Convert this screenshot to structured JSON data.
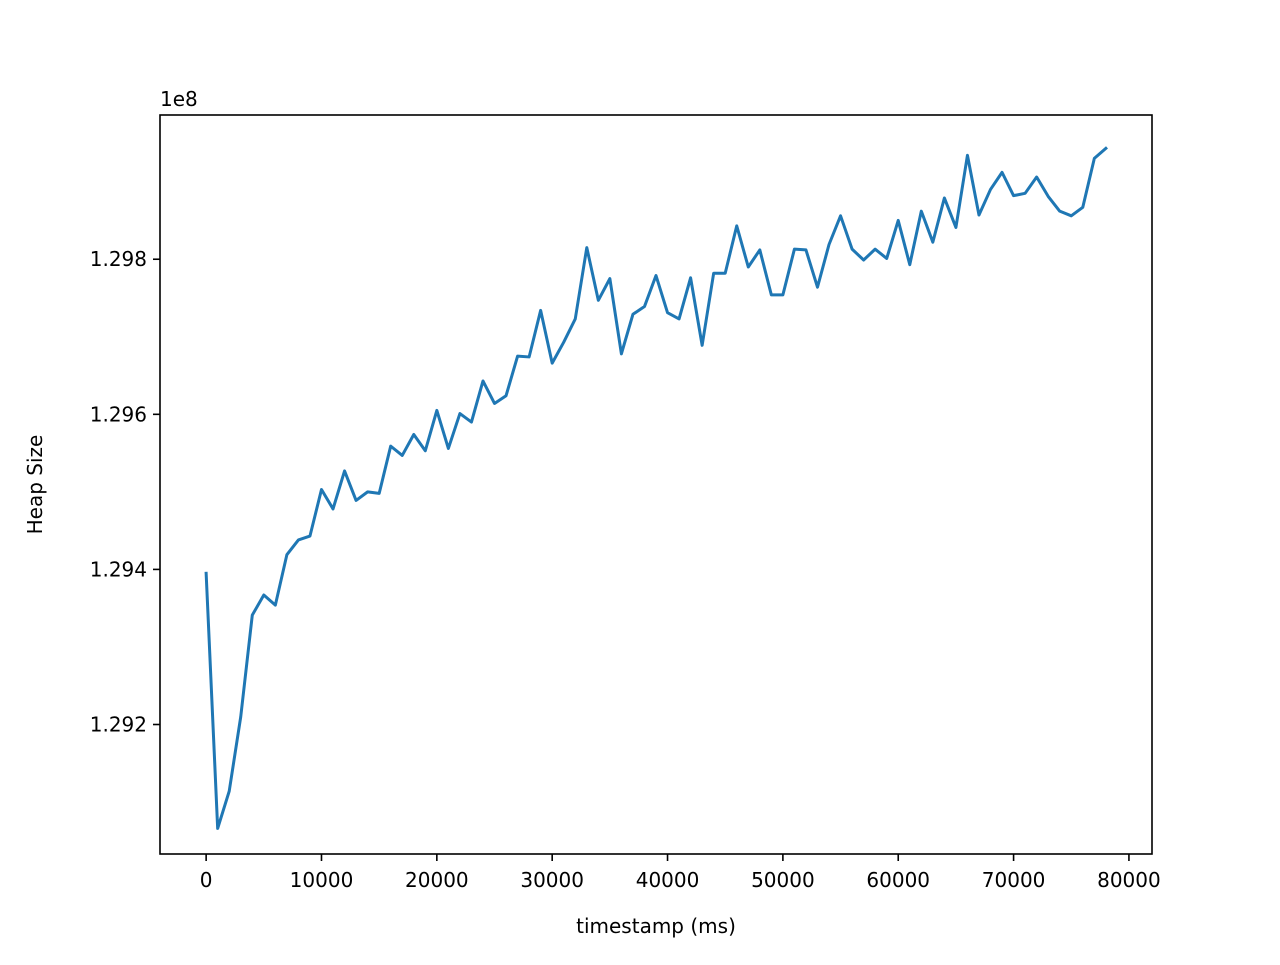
{
  "chart_data": {
    "type": "line",
    "xlabel": "timestamp (ms)",
    "ylabel": "Heap Size",
    "y_offset_text": "1e8",
    "xlim": [
      -4000,
      82000
    ],
    "ylim": [
      1.29033,
      1.29986
    ],
    "x_ticks": [
      0,
      10000,
      20000,
      30000,
      40000,
      50000,
      60000,
      70000,
      80000
    ],
    "x_tick_labels": [
      "0",
      "10000",
      "20000",
      "30000",
      "40000",
      "50000",
      "60000",
      "70000",
      "80000"
    ],
    "y_ticks": [
      1.292,
      1.294,
      1.296,
      1.298
    ],
    "y_tick_labels": [
      "1.292",
      "1.294",
      "1.296",
      "1.298"
    ],
    "grid": false,
    "line_color": "#1f77b4",
    "series": [
      {
        "x": [
          0,
          1000,
          2000,
          3000,
          4000,
          5000,
          6000,
          7000,
          8000,
          9000,
          10000,
          11000,
          12000,
          13000,
          14000,
          15000,
          16000,
          17000,
          18000,
          19000,
          20000,
          21000,
          22000,
          23000,
          24000,
          25000,
          26000,
          27000,
          28000,
          29000,
          30000,
          31000,
          32000,
          33000,
          34000,
          35000,
          36000,
          37000,
          38000,
          39000,
          40000,
          41000,
          42000,
          43000,
          44000,
          45000,
          46000,
          47000,
          48000,
          49000,
          50000,
          51000,
          52000,
          53000,
          54000,
          55000,
          56000,
          57000,
          58000,
          59000,
          60000,
          61000,
          62000,
          63000,
          64000,
          65000,
          66000,
          67000,
          68000,
          69000,
          70000,
          71000,
          72000,
          73000,
          74000,
          75000,
          76000,
          77000,
          78000
        ],
        "y": [
          1.29395,
          1.29066,
          1.29114,
          1.2921,
          1.29341,
          1.29367,
          1.29354,
          1.29419,
          1.29438,
          1.29443,
          1.29503,
          1.29478,
          1.29527,
          1.29489,
          1.295,
          1.29498,
          1.29559,
          1.29547,
          1.29574,
          1.29553,
          1.29605,
          1.29556,
          1.29601,
          1.2959,
          1.29643,
          1.29614,
          1.29624,
          1.29675,
          1.29674,
          1.29734,
          1.29666,
          1.29693,
          1.29723,
          1.29815,
          1.29747,
          1.29775,
          1.29678,
          1.29729,
          1.29739,
          1.29779,
          1.29731,
          1.29723,
          1.29776,
          1.29689,
          1.29782,
          1.29782,
          1.29843,
          1.2979,
          1.29812,
          1.29754,
          1.29754,
          1.29813,
          1.29812,
          1.29764,
          1.29819,
          1.29856,
          1.29813,
          1.29799,
          1.29813,
          1.29801,
          1.2985,
          1.29793,
          1.29862,
          1.29822,
          1.29879,
          1.29841,
          1.29934,
          1.29857,
          1.2989,
          1.29912,
          1.29882,
          1.29885,
          1.29906,
          1.29881,
          1.29862,
          1.29856,
          1.29867,
          1.2993,
          1.29943
        ]
      }
    ]
  }
}
